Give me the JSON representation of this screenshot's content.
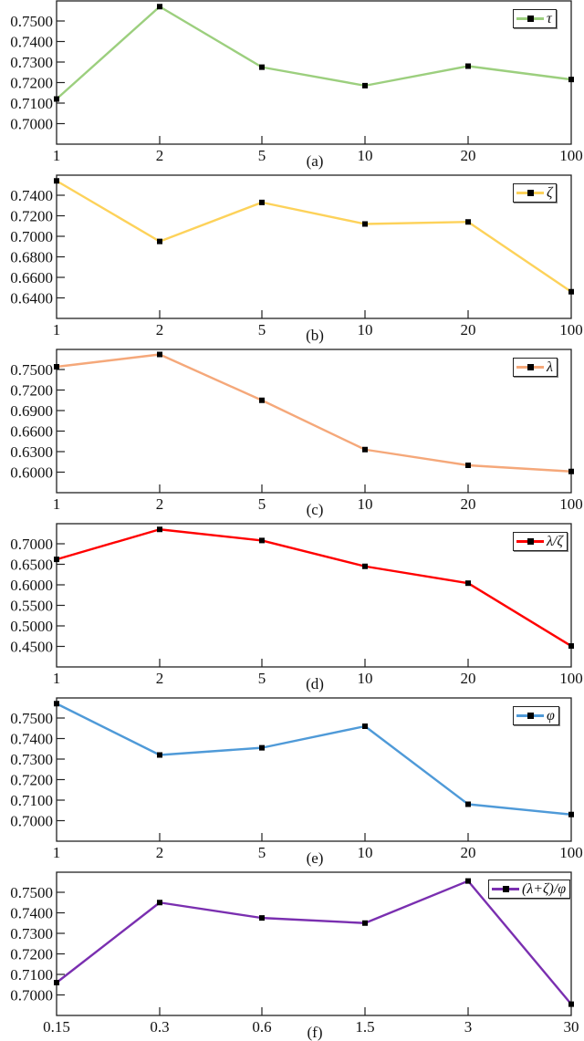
{
  "chart_data": [
    {
      "id": "a",
      "type": "line",
      "caption": "(a)",
      "categories": [
        "1",
        "2",
        "5",
        "10",
        "20",
        "100"
      ],
      "series": [
        {
          "name": "τ",
          "color": "#9ccf7e",
          "values": [
            0.712,
            0.757,
            0.7275,
            0.7185,
            0.728,
            0.7215
          ]
        }
      ],
      "yticks": [
        "0.7500",
        "0.7400",
        "0.7300",
        "0.7200",
        "0.7100",
        "0.7000"
      ],
      "ytick_top": 0.75,
      "ytick_step": 0.01,
      "legend": {
        "label": "τ",
        "position": "upper right"
      },
      "xlabel": "",
      "ylabel": "",
      "grid": false
    },
    {
      "id": "b",
      "type": "line",
      "caption": "(b)",
      "categories": [
        "1",
        "2",
        "5",
        "10",
        "20",
        "100"
      ],
      "series": [
        {
          "name": "ζ",
          "color": "#fdd25a",
          "values": [
            0.754,
            0.695,
            0.733,
            0.712,
            0.714,
            0.646
          ]
        }
      ],
      "yticks": [
        "0.7400",
        "0.7200",
        "0.7000",
        "0.6800",
        "0.6600",
        "0.6400"
      ],
      "ytick_top": 0.74,
      "ytick_step": 0.02,
      "legend": {
        "label": "ζ",
        "position": "upper right"
      },
      "xlabel": "",
      "ylabel": "",
      "grid": false
    },
    {
      "id": "c",
      "type": "line",
      "caption": "(c)",
      "categories": [
        "1",
        "2",
        "5",
        "10",
        "20",
        "100"
      ],
      "series": [
        {
          "name": "λ",
          "color": "#f5a87a",
          "values": [
            0.754,
            0.772,
            0.705,
            0.633,
            0.61,
            0.601
          ]
        }
      ],
      "yticks": [
        "0.7500",
        "0.7200",
        "0.6900",
        "0.6600",
        "0.6300",
        "0.6000"
      ],
      "ytick_top": 0.75,
      "ytick_step": 0.03,
      "legend": {
        "label": "λ",
        "position": "upper right"
      },
      "xlabel": "",
      "ylabel": "",
      "grid": false
    },
    {
      "id": "d",
      "type": "line",
      "caption": "(d)",
      "categories": [
        "1",
        "2",
        "5",
        "10",
        "20",
        "100"
      ],
      "series": [
        {
          "name": "λ/ζ",
          "color": "#ff0000",
          "values": [
            0.662,
            0.735,
            0.708,
            0.645,
            0.604,
            0.451
          ]
        }
      ],
      "yticks": [
        "0.7000",
        "0.6500",
        "0.6000",
        "0.5500",
        "0.5000",
        "0.4500"
      ],
      "ytick_top": 0.7,
      "ytick_step": 0.05,
      "legend": {
        "label": "λ/ζ",
        "position": "upper right"
      },
      "xlabel": "",
      "ylabel": "",
      "grid": false
    },
    {
      "id": "e",
      "type": "line",
      "caption": "(e)",
      "categories": [
        "1",
        "2",
        "5",
        "10",
        "20",
        "100"
      ],
      "series": [
        {
          "name": "φ",
          "color": "#4f9ad8",
          "values": [
            0.757,
            0.732,
            0.7355,
            0.746,
            0.708,
            0.703
          ]
        }
      ],
      "yticks": [
        "0.7500",
        "0.7400",
        "0.7300",
        "0.7200",
        "0.7100",
        "0.7000"
      ],
      "ytick_top": 0.75,
      "ytick_step": 0.01,
      "legend": {
        "label": "φ",
        "position": "upper right"
      },
      "xlabel": "",
      "ylabel": "",
      "grid": false
    },
    {
      "id": "f",
      "type": "line",
      "caption": "(f)",
      "categories": [
        "0.15",
        "0.3",
        "0.6",
        "1.5",
        "3",
        "30"
      ],
      "series": [
        {
          "name": "(λ+ζ)/φ",
          "color": "#7a2fb0",
          "values": [
            0.706,
            0.745,
            0.7375,
            0.735,
            0.7555,
            0.6955
          ]
        }
      ],
      "yticks": [
        "0.7500",
        "0.7400",
        "0.7300",
        "0.7200",
        "0.7100",
        "0.7000"
      ],
      "ytick_top": 0.75,
      "ytick_step": 0.01,
      "legend": {
        "label": "(λ+ζ)/φ",
        "position": "upper right"
      },
      "xlabel": "",
      "ylabel": "",
      "grid": false
    }
  ]
}
